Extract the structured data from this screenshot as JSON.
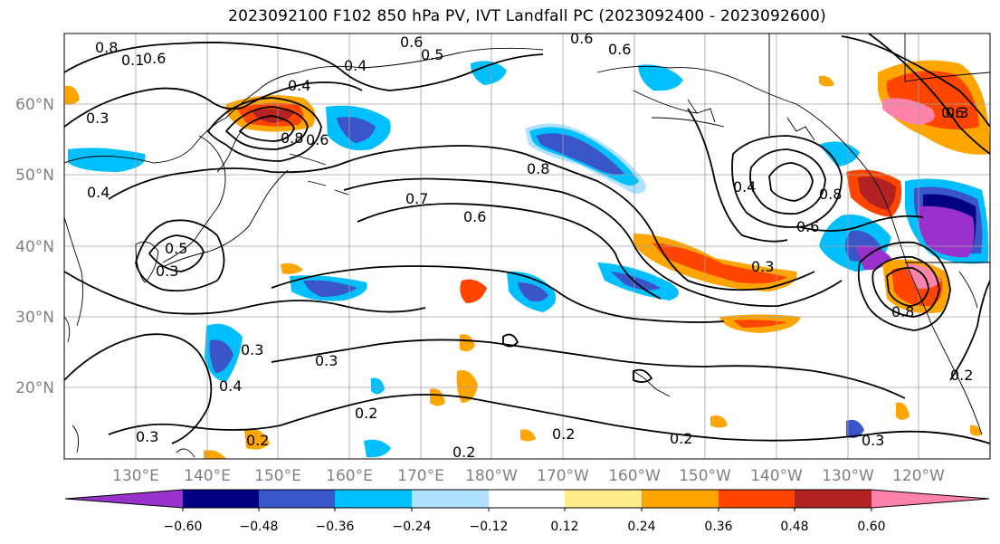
{
  "title": "2023092100 F102 850 hPa PV, IVT Landfall PC (2023092400 - 2023092600)",
  "lat_labels": [
    "60°N",
    "50°N",
    "40°N",
    "30°N",
    "20°N"
  ],
  "lon_labels": [
    "130°E",
    "140°E",
    "150°E",
    "160°E",
    "170°E",
    "180°W",
    "170°W",
    "160°W",
    "150°W",
    "140°W",
    "130°W",
    "120°W"
  ],
  "colorbar": {
    "ticks": [
      "−0.60",
      "−0.48",
      "−0.36",
      "−0.24",
      "−0.12",
      "0.12",
      "0.24",
      "0.36",
      "0.48",
      "0.60"
    ],
    "colors": [
      "#9932cc",
      "#000080",
      "#3a55c8",
      "#00bfff",
      "#b0e2ff",
      "#ffffff",
      "#ffec8b",
      "#ffa500",
      "#ff4500",
      "#b22222",
      "#ff82ab"
    ]
  },
  "contour_labels": [
    "0.8",
    "0.1",
    "0.6",
    "0.3",
    "0.4",
    "0.4",
    "0.6",
    "0.5",
    "0.4",
    "0.5",
    "0.3",
    "0.8",
    "0.6",
    "0.7",
    "0.6",
    "0.6",
    "0.8",
    "0.6",
    "0.4",
    "0.8",
    "0.6",
    "0.3",
    "0.3",
    "0.8",
    "0.6",
    "0.3",
    "0.3",
    "0.4",
    "0.2",
    "0.2",
    "0.2",
    "0.2",
    "0.3",
    "0.2",
    "0.2"
  ]
}
